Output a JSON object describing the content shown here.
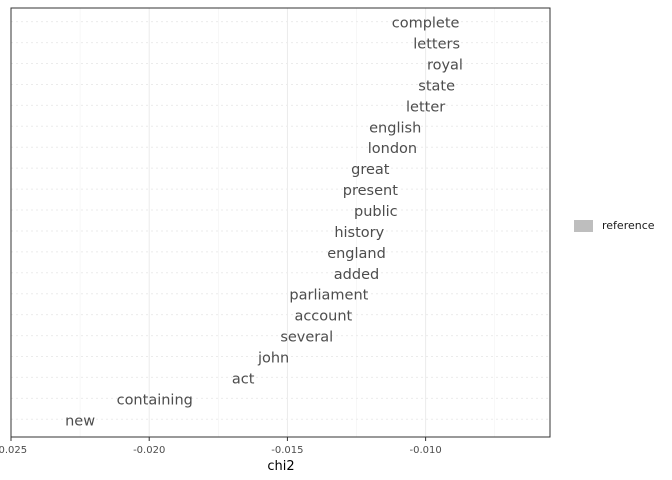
{
  "chart_data": {
    "type": "text-scatter",
    "xlabel": "chi2",
    "ylabel": "",
    "xlim": [
      -0.025,
      -0.0055
    ],
    "xticks": [
      -0.025,
      -0.02,
      -0.015,
      -0.01
    ],
    "xtick_labels": [
      "-0.025",
      "-0.020",
      "-0.015",
      "-0.010"
    ],
    "grid": true,
    "legend": {
      "position": "right",
      "entries": [
        "reference"
      ]
    },
    "series": [
      {
        "name": "reference",
        "color": "#4d4d4d",
        "points": [
          {
            "label": "complete",
            "x": -0.01
          },
          {
            "label": "letters",
            "x": -0.0096
          },
          {
            "label": "royal",
            "x": -0.0093
          },
          {
            "label": "state",
            "x": -0.0096
          },
          {
            "label": "letter",
            "x": -0.01
          },
          {
            "label": "english",
            "x": -0.0111
          },
          {
            "label": "london",
            "x": -0.0112
          },
          {
            "label": "great",
            "x": -0.012
          },
          {
            "label": "present",
            "x": -0.012
          },
          {
            "label": "public",
            "x": -0.0118
          },
          {
            "label": "history",
            "x": -0.0124
          },
          {
            "label": "england",
            "x": -0.0125
          },
          {
            "label": "added",
            "x": -0.0125
          },
          {
            "label": "parliament",
            "x": -0.0135
          },
          {
            "label": "account",
            "x": -0.0137
          },
          {
            "label": "several",
            "x": -0.0143
          },
          {
            "label": "john",
            "x": -0.0155
          },
          {
            "label": "act",
            "x": -0.0166
          },
          {
            "label": "containing",
            "x": -0.0198
          },
          {
            "label": "new",
            "x": -0.0225
          }
        ]
      }
    ]
  }
}
